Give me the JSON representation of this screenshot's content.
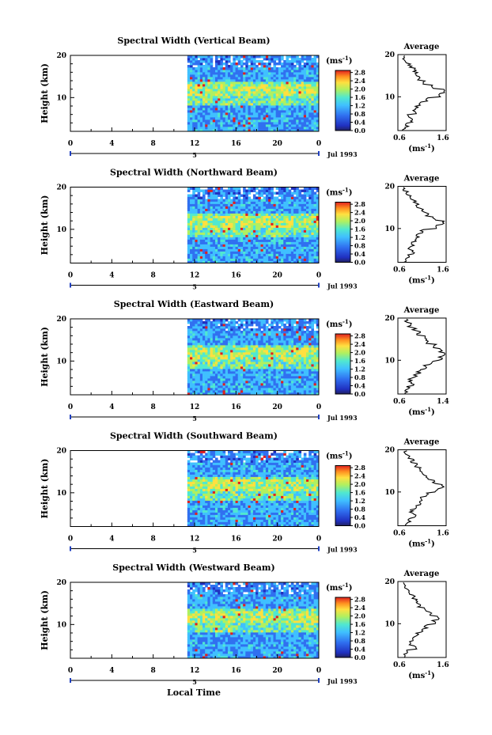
{
  "figure": {
    "xlabel_main": "Local Time",
    "colorbar_unit_prefix": "(ms",
    "colorbar_unit_exp": "-1",
    "colorbar_unit_suffix": ")",
    "colorbar_ticks": [
      "2.8",
      "2.4",
      "2.0",
      "1.6",
      "1.2",
      "0.8",
      "0.4",
      "0.0"
    ],
    "date_label": "Jul 1993",
    "date_marker": "5",
    "avg_title": "Average",
    "avg_xlabel_prefix": "(ms",
    "avg_xlabel_exp": "-1",
    "avg_xlabel_suffix": ")",
    "colors": {
      "low": "#3050d8",
      "mid": "#40c8ff",
      "high": "#ffe040",
      "max": "#e02020"
    }
  },
  "chart_data": [
    {
      "type": "heatmap",
      "title": "Spectral Width (Vertical Beam)",
      "ylabel": "Height (km)",
      "xlabel": "",
      "x_ticks": [
        "0",
        "4",
        "8",
        "12",
        "16",
        "20",
        "0"
      ],
      "y_ticks": [
        "20",
        "10"
      ],
      "xlim": [
        0,
        24
      ],
      "ylim": [
        2,
        20
      ],
      "data_start_hour": 11.3,
      "colorbar_range": [
        0.0,
        2.8
      ],
      "peak_band_km": [
        8,
        14
      ],
      "average_profile": {
        "xlim": [
          0.6,
          1.6
        ],
        "x_tick_labels": [
          "0.6",
          "1.6"
        ],
        "y_ticks": [
          "20",
          "10"
        ],
        "height_km": [
          2.5,
          3.5,
          4.5,
          5.5,
          6.5,
          7.5,
          8.5,
          9.5,
          10.5,
          11.5,
          12.5,
          13.5,
          14.5,
          15.5,
          16.5,
          17.5,
          18.5,
          19.5
        ],
        "values": [
          0.72,
          0.78,
          0.9,
          0.82,
          0.95,
          0.98,
          1.05,
          1.2,
          1.45,
          1.55,
          1.3,
          1.15,
          1.05,
          0.98,
          0.95,
          0.85,
          0.75,
          0.7
        ]
      }
    },
    {
      "type": "heatmap",
      "title": "Spectral Width (Northward Beam)",
      "ylabel": "Height (km)",
      "xlabel": "",
      "x_ticks": [
        "0",
        "4",
        "8",
        "12",
        "16",
        "20",
        "0"
      ],
      "y_ticks": [
        "20",
        "10"
      ],
      "xlim": [
        0,
        24
      ],
      "ylim": [
        2,
        20
      ],
      "data_start_hour": 11.3,
      "colorbar_range": [
        0.0,
        2.8
      ],
      "peak_band_km": [
        8,
        14
      ],
      "average_profile": {
        "xlim": [
          0.6,
          1.6
        ],
        "x_tick_labels": [
          "0.6",
          "1.6"
        ],
        "y_ticks": [
          "20",
          "10"
        ],
        "height_km": [
          2.5,
          3.5,
          4.5,
          5.5,
          6.5,
          7.5,
          8.5,
          9.5,
          10.5,
          11.5,
          12.5,
          13.5,
          14.5,
          15.5,
          16.5,
          17.5,
          18.5,
          19.5
        ],
        "values": [
          0.75,
          0.8,
          0.92,
          0.85,
          0.9,
          0.95,
          1.0,
          1.1,
          1.4,
          1.55,
          1.35,
          1.2,
          1.1,
          1.0,
          0.95,
          0.85,
          0.78,
          0.72
        ]
      }
    },
    {
      "type": "heatmap",
      "title": "Spectral Width (Eastward Beam)",
      "ylabel": "Height (km)",
      "xlabel": "",
      "x_ticks": [
        "0",
        "4",
        "8",
        "12",
        "16",
        "20",
        "0"
      ],
      "y_ticks": [
        "20",
        "10"
      ],
      "xlim": [
        0,
        24
      ],
      "ylim": [
        2,
        20
      ],
      "data_start_hour": 11.3,
      "colorbar_range": [
        0.0,
        2.8
      ],
      "peak_band_km": [
        8,
        14
      ],
      "average_profile": {
        "xlim": [
          0.6,
          1.4
        ],
        "x_tick_labels": [
          "0.6",
          "1.4"
        ],
        "y_ticks": [
          "20",
          "10"
        ],
        "height_km": [
          2.5,
          3.5,
          4.5,
          5.5,
          6.5,
          7.5,
          8.5,
          9.5,
          10.5,
          11.5,
          12.5,
          13.5,
          14.5,
          15.5,
          16.5,
          17.5,
          18.5,
          19.5
        ],
        "values": [
          0.72,
          0.76,
          0.85,
          0.8,
          0.88,
          0.95,
          1.05,
          1.15,
          1.3,
          1.38,
          1.3,
          1.2,
          1.1,
          1.05,
          0.95,
          0.88,
          0.8,
          0.74
        ]
      }
    },
    {
      "type": "heatmap",
      "title": "Spectral Width (Southward Beam)",
      "ylabel": "Height (km)",
      "xlabel": "",
      "x_ticks": [
        "0",
        "4",
        "8",
        "12",
        "16",
        "20",
        "0"
      ],
      "y_ticks": [
        "20",
        "10"
      ],
      "xlim": [
        0,
        24
      ],
      "ylim": [
        2,
        20
      ],
      "data_start_hour": 11.3,
      "colorbar_range": [
        0.0,
        2.8
      ],
      "peak_band_km": [
        8,
        14
      ],
      "average_profile": {
        "xlim": [
          0.6,
          1.6
        ],
        "x_tick_labels": [
          "0.6",
          "1.6"
        ],
        "y_ticks": [
          "20",
          "10"
        ],
        "height_km": [
          2.5,
          3.5,
          4.5,
          5.5,
          6.5,
          7.5,
          8.5,
          9.5,
          10.5,
          11.5,
          12.5,
          13.5,
          14.5,
          15.5,
          16.5,
          17.5,
          18.5,
          19.5
        ],
        "values": [
          0.78,
          0.85,
          0.95,
          0.88,
          0.98,
          1.05,
          1.1,
          1.2,
          1.4,
          1.52,
          1.35,
          1.2,
          1.12,
          1.05,
          0.98,
          0.9,
          0.82,
          0.75
        ]
      }
    },
    {
      "type": "heatmap",
      "title": "Spectral Width (Westward Beam)",
      "ylabel": "Height (km)",
      "xlabel": "Local Time",
      "x_ticks": [
        "0",
        "4",
        "8",
        "12",
        "16",
        "20",
        "0"
      ],
      "y_ticks": [
        "20",
        "10"
      ],
      "xlim": [
        0,
        24
      ],
      "ylim": [
        2,
        20
      ],
      "data_start_hour": 11.3,
      "colorbar_range": [
        0.0,
        2.8
      ],
      "peak_band_km": [
        8,
        14
      ],
      "average_profile": {
        "xlim": [
          0.6,
          1.6
        ],
        "x_tick_labels": [
          "0.6",
          "1.6"
        ],
        "y_ticks": [
          "20",
          "10"
        ],
        "height_km": [
          2.5,
          3.5,
          4.5,
          5.5,
          6.5,
          7.5,
          8.5,
          9.5,
          10.5,
          11.5,
          12.5,
          13.5,
          14.5,
          15.5,
          16.5,
          17.5,
          18.5,
          19.5
        ],
        "values": [
          0.75,
          0.82,
          0.95,
          0.85,
          0.92,
          1.0,
          1.08,
          1.18,
          1.35,
          1.45,
          1.3,
          1.15,
          1.05,
          1.0,
          0.92,
          0.85,
          0.78,
          0.72
        ]
      }
    }
  ]
}
